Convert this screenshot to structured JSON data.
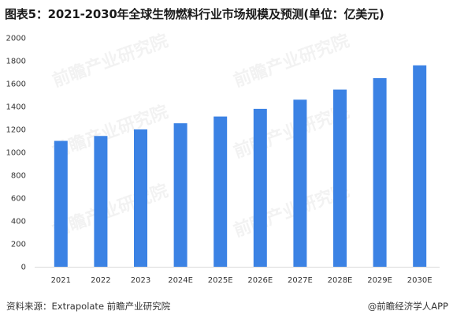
{
  "header": {
    "title": "图表5：2021-2030年全球生物燃料行业市场规模及预测(单位：亿美元)"
  },
  "footer": {
    "source": "资料来源：Extrapolate 前瞻产业研究院",
    "brand": "@前瞻经济学人APP"
  },
  "watermark": {
    "text": "前瞻产业研究院"
  },
  "colors": {
    "bar": "#3b82e4",
    "axis": "#d9d9d9"
  },
  "chart_data": {
    "type": "bar",
    "categories": [
      "2021",
      "2022",
      "2023",
      "2024E",
      "2025E",
      "2026E",
      "2027E",
      "2028E",
      "2029E",
      "2030E"
    ],
    "values": [
      1100,
      1143,
      1200,
      1254,
      1313,
      1380,
      1460,
      1548,
      1648,
      1760
    ],
    "title": "图表5：2021-2030年全球生物燃料行业市场规模及预测(单位：亿美元)",
    "ylim": [
      0,
      2000
    ],
    "yticks": [
      0,
      200,
      400,
      600,
      800,
      1000,
      1200,
      1400,
      1600,
      1800,
      2000
    ],
    "grid": false,
    "legend": "none"
  }
}
